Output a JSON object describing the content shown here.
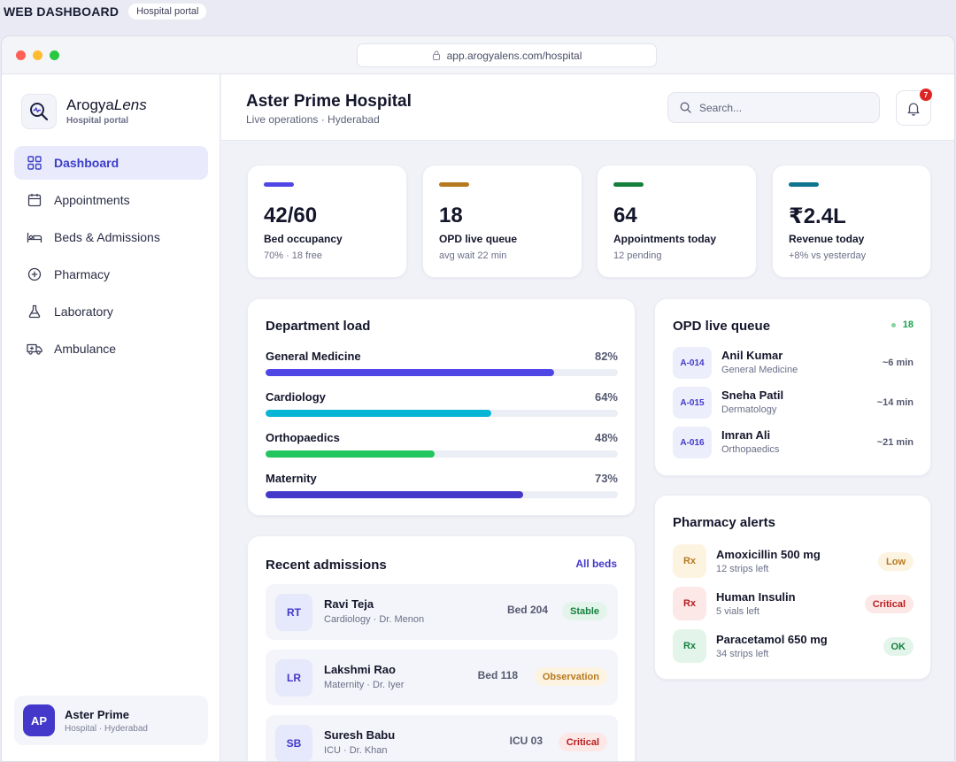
{
  "top": {
    "brand": "WEB DASHBOARD",
    "pill": "Hospital portal"
  },
  "browser": {
    "url": "app.arogyalens.com/hospital"
  },
  "sidebar": {
    "logo_name_bold": "Arogya",
    "logo_name_italic": "Lens",
    "logo_sub": "Hospital portal",
    "items": [
      {
        "label": "Dashboard",
        "icon": "grid-icon"
      },
      {
        "label": "Appointments",
        "icon": "calendar-icon"
      },
      {
        "label": "Beds & Admissions",
        "icon": "bed-icon"
      },
      {
        "label": "Pharmacy",
        "icon": "plus-circle-icon"
      },
      {
        "label": "Laboratory",
        "icon": "flask-icon"
      },
      {
        "label": "Ambulance",
        "icon": "ambulance-icon"
      }
    ],
    "user": {
      "initials": "AP",
      "name": "Aster Prime",
      "sub": "Hospital · Hyderabad"
    }
  },
  "header": {
    "title": "Aster Prime Hospital",
    "subtitle": "Live operations · Hyderabad",
    "search_placeholder": "Search...",
    "notifications": "7"
  },
  "stats": [
    {
      "value": "42/60",
      "label": "Bed occupancy",
      "sub": "70% · 18 free",
      "color": "#4f46e5"
    },
    {
      "value": "18",
      "label": "OPD live queue",
      "sub": "avg wait 22 min",
      "color": "#b7791f"
    },
    {
      "value": "64",
      "label": "Appointments today",
      "sub": "12 pending",
      "color": "#15803d"
    },
    {
      "value": "₹2.4L",
      "label": "Revenue today",
      "sub": "+8% vs yesterday",
      "color": "#0e7490"
    }
  ],
  "department_load": {
    "title": "Department load",
    "rows": [
      {
        "name": "General Medicine",
        "pct_label": "82%",
        "value": 82,
        "color": "#4f46e5"
      },
      {
        "name": "Cardiology",
        "pct_label": "64%",
        "value": 64,
        "color": "#06b6d4"
      },
      {
        "name": "Orthopaedics",
        "pct_label": "48%",
        "value": 48,
        "color": "#22c55e"
      },
      {
        "name": "Maternity",
        "pct_label": "73%",
        "value": 73,
        "color": "#4338ca"
      }
    ]
  },
  "opd_queue": {
    "title": "OPD live queue",
    "count": "18",
    "rows": [
      {
        "token": "A-014",
        "name": "Anil Kumar",
        "dept": "General Medicine",
        "wait": "~6 min"
      },
      {
        "token": "A-015",
        "name": "Sneha Patil",
        "dept": "Dermatology",
        "wait": "~14 min"
      },
      {
        "token": "A-016",
        "name": "Imran Ali",
        "dept": "Orthopaedics",
        "wait": "~21 min"
      }
    ]
  },
  "pharmacy": {
    "title": "Pharmacy alerts",
    "rows": [
      {
        "rx": "Rx",
        "name": "Amoxicillin 500 mg",
        "sub": "12 strips left",
        "status": "Low",
        "bg": "#fdf3e1",
        "fg": "#b7791f"
      },
      {
        "rx": "Rx",
        "name": "Human Insulin",
        "sub": "5 vials left",
        "status": "Critical",
        "bg": "#fde8e8",
        "fg": "#b91c1c"
      },
      {
        "rx": "Rx",
        "name": "Paracetamol 650 mg",
        "sub": "34 strips left",
        "status": "OK",
        "bg": "#e3f5ea",
        "fg": "#15803d"
      }
    ]
  },
  "admissions": {
    "title": "Recent admissions",
    "link": "All beds",
    "rows": [
      {
        "initials": "RT",
        "name": "Ravi Teja",
        "sub": "Cardiology · Dr. Menon",
        "bed": "Bed 204",
        "status": "Stable",
        "bg": "#e3f5ea",
        "fg": "#15803d"
      },
      {
        "initials": "LR",
        "name": "Lakshmi Rao",
        "sub": "Maternity · Dr. Iyer",
        "bed": "Bed 118",
        "status": "Observation",
        "bg": "#fdf3e1",
        "fg": "#b7791f"
      },
      {
        "initials": "SB",
        "name": "Suresh Babu",
        "sub": "ICU · Dr. Khan",
        "bed": "ICU 03",
        "status": "Critical",
        "bg": "#fde8e8",
        "fg": "#b91c1c"
      }
    ]
  }
}
